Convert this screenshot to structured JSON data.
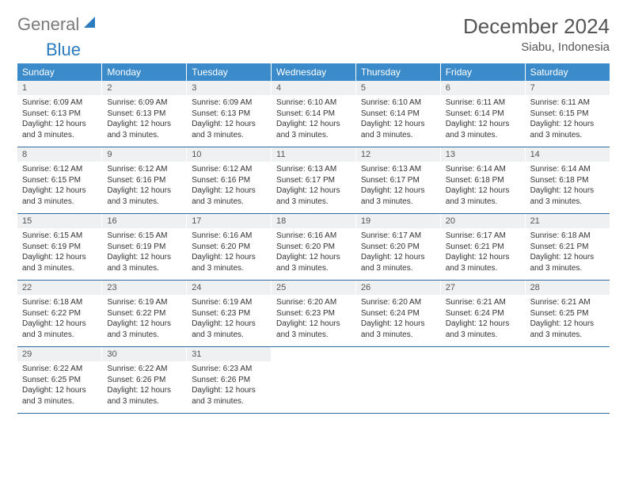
{
  "logo": {
    "text1": "General",
    "text2": "Blue"
  },
  "title": "December 2024",
  "location": "Siabu, Indonesia",
  "colors": {
    "header_bg": "#3b8bca",
    "header_fg": "#ffffff",
    "daynum_bg": "#eef0f1",
    "border": "#2e6da4",
    "logo_gray": "#7a7a7a",
    "logo_blue": "#2b7bbf"
  },
  "weekdays": [
    "Sunday",
    "Monday",
    "Tuesday",
    "Wednesday",
    "Thursday",
    "Friday",
    "Saturday"
  ],
  "weeks": [
    [
      {
        "n": "1",
        "sr": "6:09 AM",
        "ss": "6:13 PM",
        "dl": "12 hours and 3 minutes."
      },
      {
        "n": "2",
        "sr": "6:09 AM",
        "ss": "6:13 PM",
        "dl": "12 hours and 3 minutes."
      },
      {
        "n": "3",
        "sr": "6:09 AM",
        "ss": "6:13 PM",
        "dl": "12 hours and 3 minutes."
      },
      {
        "n": "4",
        "sr": "6:10 AM",
        "ss": "6:14 PM",
        "dl": "12 hours and 3 minutes."
      },
      {
        "n": "5",
        "sr": "6:10 AM",
        "ss": "6:14 PM",
        "dl": "12 hours and 3 minutes."
      },
      {
        "n": "6",
        "sr": "6:11 AM",
        "ss": "6:14 PM",
        "dl": "12 hours and 3 minutes."
      },
      {
        "n": "7",
        "sr": "6:11 AM",
        "ss": "6:15 PM",
        "dl": "12 hours and 3 minutes."
      }
    ],
    [
      {
        "n": "8",
        "sr": "6:12 AM",
        "ss": "6:15 PM",
        "dl": "12 hours and 3 minutes."
      },
      {
        "n": "9",
        "sr": "6:12 AM",
        "ss": "6:16 PM",
        "dl": "12 hours and 3 minutes."
      },
      {
        "n": "10",
        "sr": "6:12 AM",
        "ss": "6:16 PM",
        "dl": "12 hours and 3 minutes."
      },
      {
        "n": "11",
        "sr": "6:13 AM",
        "ss": "6:17 PM",
        "dl": "12 hours and 3 minutes."
      },
      {
        "n": "12",
        "sr": "6:13 AM",
        "ss": "6:17 PM",
        "dl": "12 hours and 3 minutes."
      },
      {
        "n": "13",
        "sr": "6:14 AM",
        "ss": "6:18 PM",
        "dl": "12 hours and 3 minutes."
      },
      {
        "n": "14",
        "sr": "6:14 AM",
        "ss": "6:18 PM",
        "dl": "12 hours and 3 minutes."
      }
    ],
    [
      {
        "n": "15",
        "sr": "6:15 AM",
        "ss": "6:19 PM",
        "dl": "12 hours and 3 minutes."
      },
      {
        "n": "16",
        "sr": "6:15 AM",
        "ss": "6:19 PM",
        "dl": "12 hours and 3 minutes."
      },
      {
        "n": "17",
        "sr": "6:16 AM",
        "ss": "6:20 PM",
        "dl": "12 hours and 3 minutes."
      },
      {
        "n": "18",
        "sr": "6:16 AM",
        "ss": "6:20 PM",
        "dl": "12 hours and 3 minutes."
      },
      {
        "n": "19",
        "sr": "6:17 AM",
        "ss": "6:20 PM",
        "dl": "12 hours and 3 minutes."
      },
      {
        "n": "20",
        "sr": "6:17 AM",
        "ss": "6:21 PM",
        "dl": "12 hours and 3 minutes."
      },
      {
        "n": "21",
        "sr": "6:18 AM",
        "ss": "6:21 PM",
        "dl": "12 hours and 3 minutes."
      }
    ],
    [
      {
        "n": "22",
        "sr": "6:18 AM",
        "ss": "6:22 PM",
        "dl": "12 hours and 3 minutes."
      },
      {
        "n": "23",
        "sr": "6:19 AM",
        "ss": "6:22 PM",
        "dl": "12 hours and 3 minutes."
      },
      {
        "n": "24",
        "sr": "6:19 AM",
        "ss": "6:23 PM",
        "dl": "12 hours and 3 minutes."
      },
      {
        "n": "25",
        "sr": "6:20 AM",
        "ss": "6:23 PM",
        "dl": "12 hours and 3 minutes."
      },
      {
        "n": "26",
        "sr": "6:20 AM",
        "ss": "6:24 PM",
        "dl": "12 hours and 3 minutes."
      },
      {
        "n": "27",
        "sr": "6:21 AM",
        "ss": "6:24 PM",
        "dl": "12 hours and 3 minutes."
      },
      {
        "n": "28",
        "sr": "6:21 AM",
        "ss": "6:25 PM",
        "dl": "12 hours and 3 minutes."
      }
    ],
    [
      {
        "n": "29",
        "sr": "6:22 AM",
        "ss": "6:25 PM",
        "dl": "12 hours and 3 minutes."
      },
      {
        "n": "30",
        "sr": "6:22 AM",
        "ss": "6:26 PM",
        "dl": "12 hours and 3 minutes."
      },
      {
        "n": "31",
        "sr": "6:23 AM",
        "ss": "6:26 PM",
        "dl": "12 hours and 3 minutes."
      },
      null,
      null,
      null,
      null
    ]
  ],
  "labels": {
    "sunrise": "Sunrise:",
    "sunset": "Sunset:",
    "daylight": "Daylight:"
  }
}
